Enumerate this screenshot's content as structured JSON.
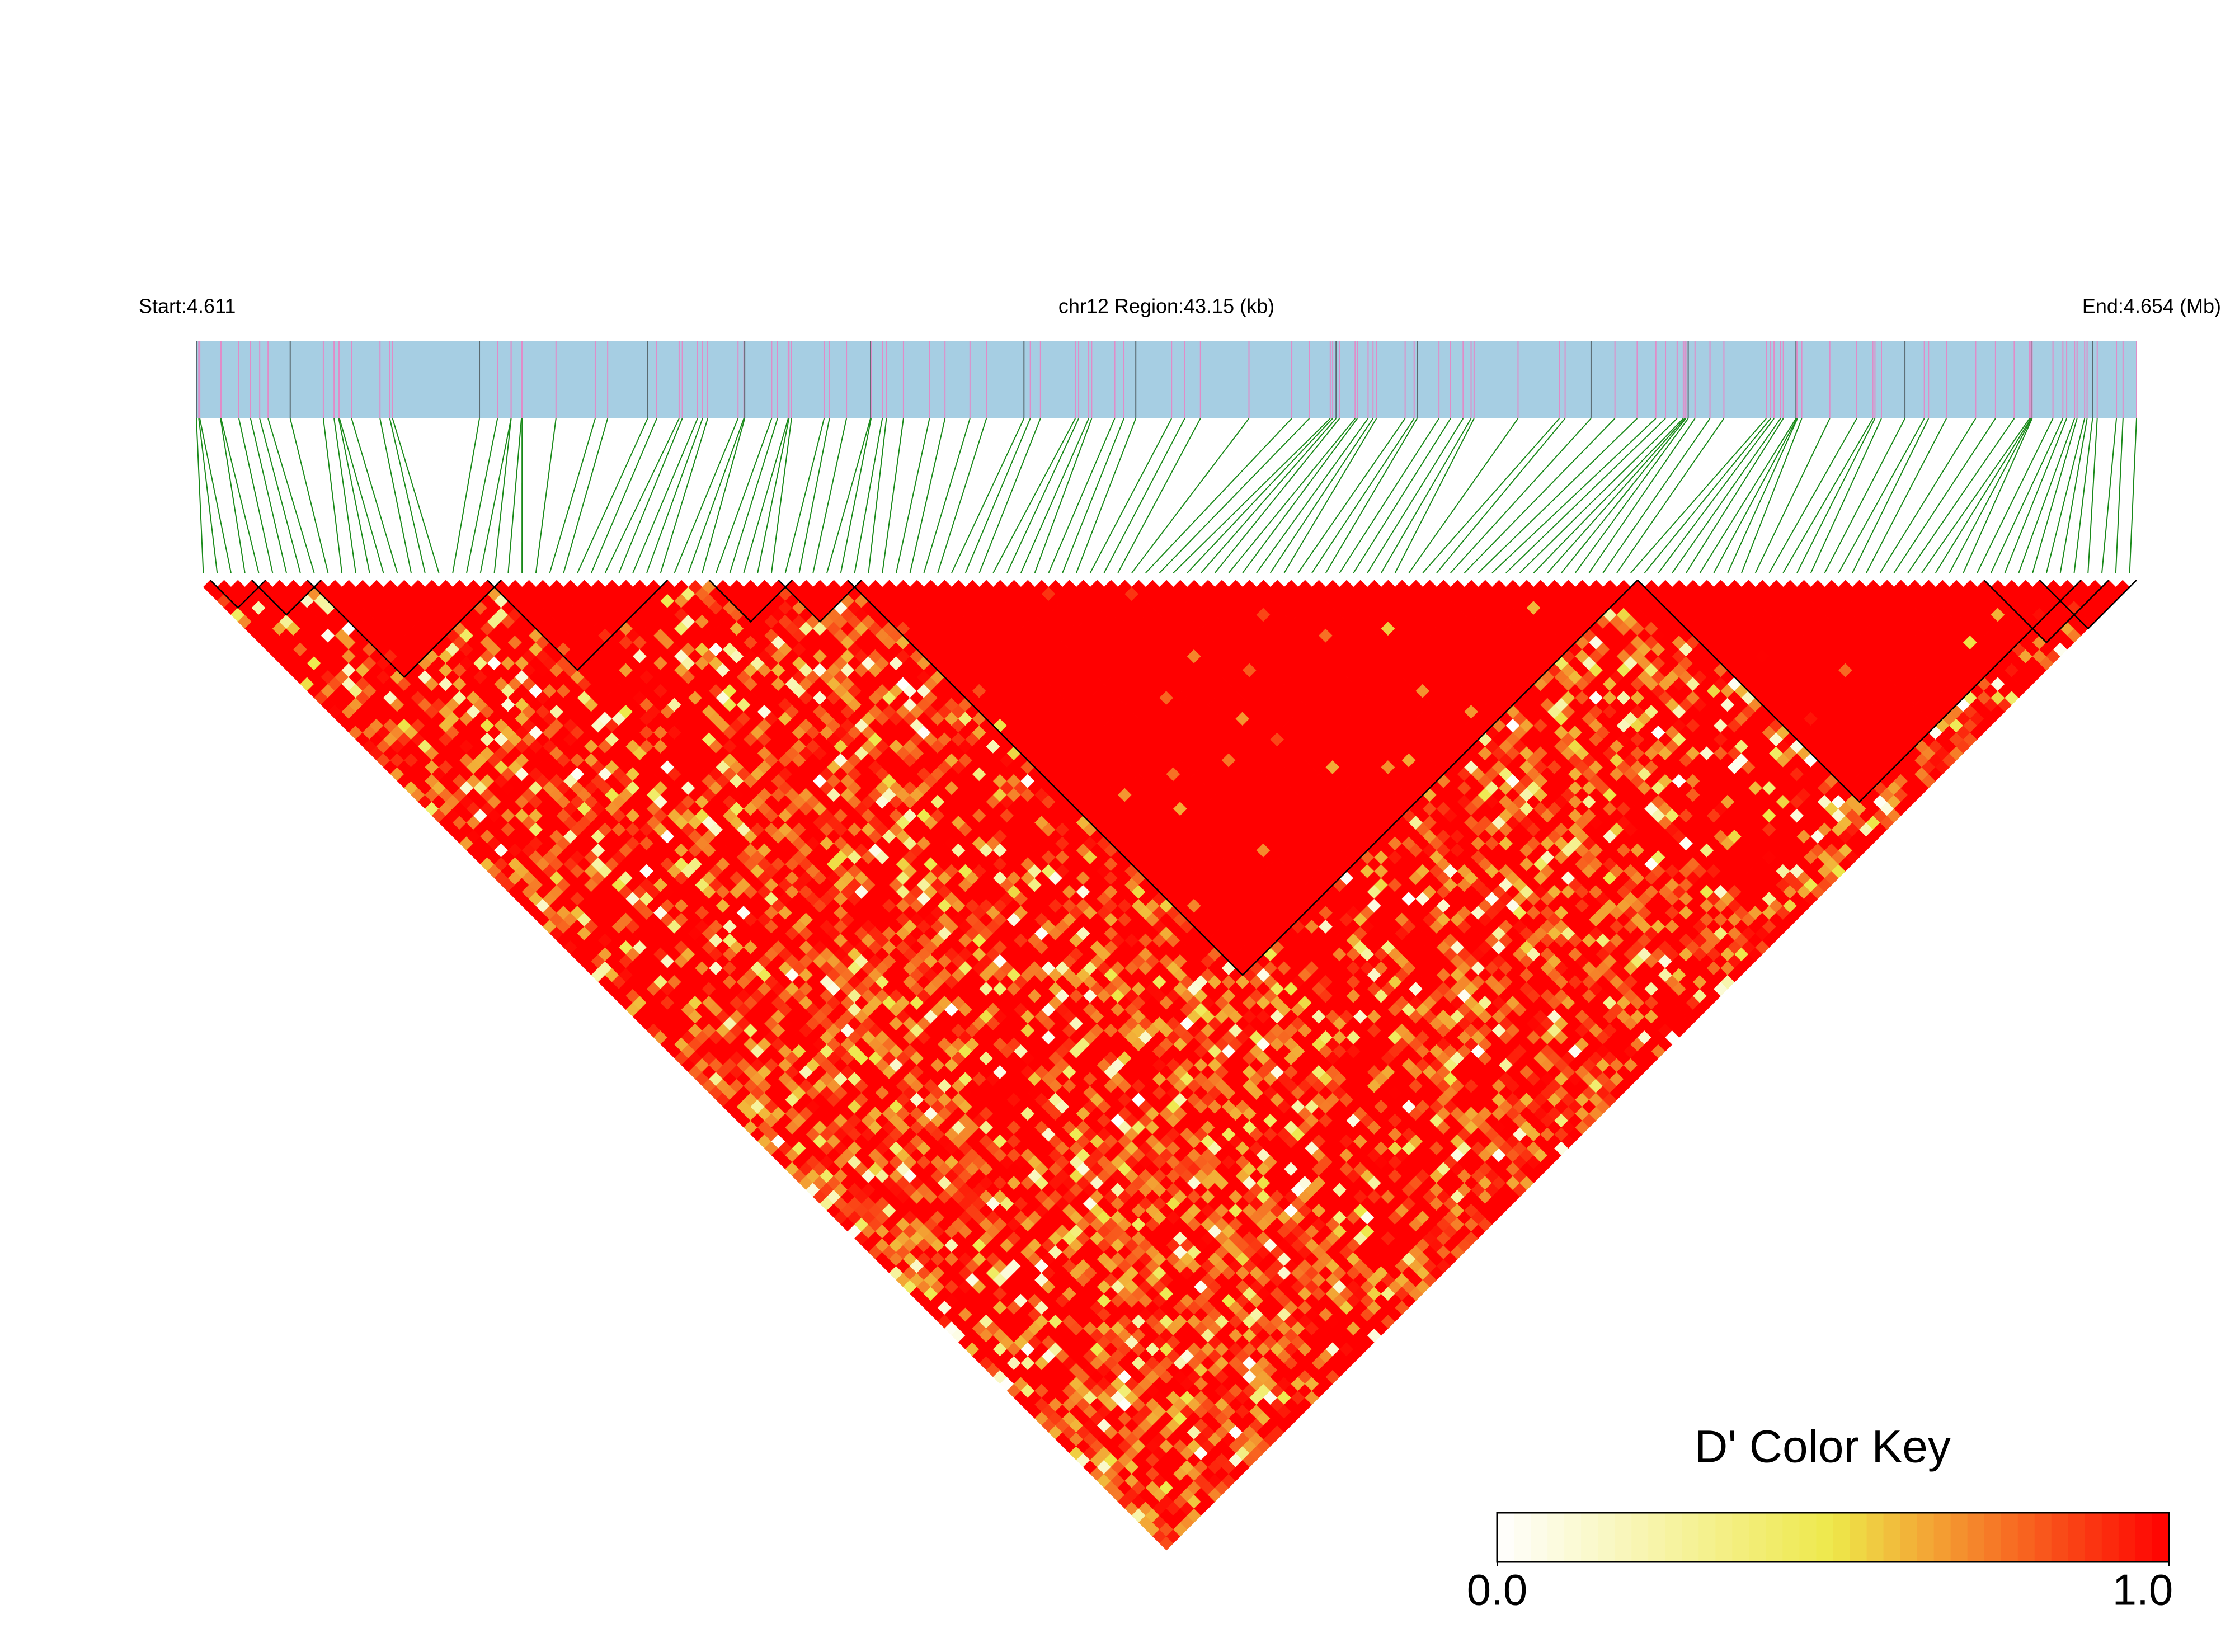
{
  "header": {
    "start": "Start:4.611",
    "region": "chr12 Region:43.15 (kb)",
    "end": "End:4.654 (Mb)"
  },
  "color_key": {
    "title": "D' Color Key",
    "lim": [
      0,
      1
    ],
    "ticks": [
      {
        "value": 0,
        "label": "0.0"
      },
      {
        "value": 1,
        "label": "1.0"
      }
    ],
    "colors": [
      "#ffffff",
      "#eee84a",
      "#ff0000"
    ]
  }
}
